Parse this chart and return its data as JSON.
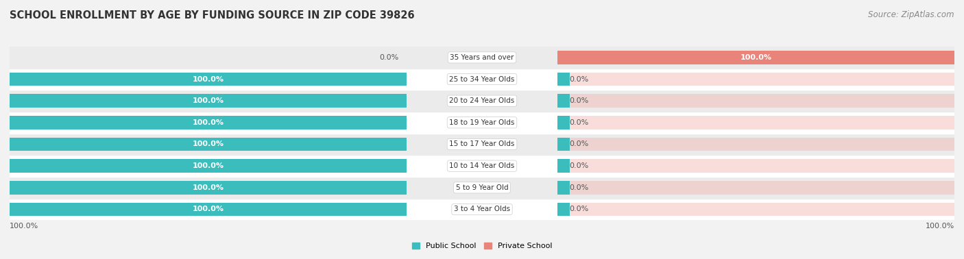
{
  "title": "SCHOOL ENROLLMENT BY AGE BY FUNDING SOURCE IN ZIP CODE 39826",
  "source": "Source: ZipAtlas.com",
  "categories": [
    "3 to 4 Year Olds",
    "5 to 9 Year Old",
    "10 to 14 Year Olds",
    "15 to 17 Year Olds",
    "18 to 19 Year Olds",
    "20 to 24 Year Olds",
    "25 to 34 Year Olds",
    "35 Years and over"
  ],
  "public_values": [
    100.0,
    100.0,
    100.0,
    100.0,
    100.0,
    100.0,
    100.0,
    0.0
  ],
  "private_values": [
    0.0,
    0.0,
    0.0,
    0.0,
    0.0,
    0.0,
    0.0,
    100.0
  ],
  "public_color": "#3BBCBD",
  "private_color": "#E8847A",
  "private_bg_color": "#F2B5B0",
  "public_label_color": "#ffffff",
  "private_label_color": "#ffffff",
  "bg_color": "#f2f2f2",
  "row_bg_colors": [
    "#ffffff",
    "#ebebeb"
  ],
  "x_left_label": "100.0%",
  "x_right_label": "100.0%",
  "title_fontsize": 10.5,
  "source_fontsize": 8.5,
  "value_fontsize": 8,
  "cat_fontsize": 7.5,
  "bar_height": 0.62,
  "public_label": "Public School",
  "private_label": "Private School"
}
